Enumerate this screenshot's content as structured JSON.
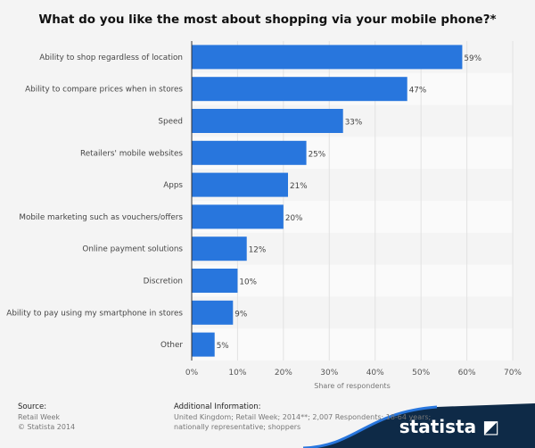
{
  "chart_data": {
    "type": "bar",
    "orientation": "horizontal",
    "title": "What do you like the most about shopping via your mobile phone?*",
    "categories": [
      "Ability to shop regardless of location",
      "Ability to compare prices when in stores",
      "Speed",
      "Retailers' mobile websites",
      "Apps",
      "Mobile marketing such as vouchers/offers",
      "Online payment solutions",
      "Discretion",
      "Ability to pay using my smartphone in stores",
      "Other"
    ],
    "values": [
      59,
      47,
      33,
      25,
      21,
      20,
      12,
      10,
      9,
      5
    ],
    "value_labels": [
      "59%",
      "47%",
      "33%",
      "25%",
      "21%",
      "20%",
      "12%",
      "10%",
      "9%",
      "5%"
    ],
    "xlabel": "Share of respondents",
    "xlim": [
      0,
      70
    ],
    "xticks": [
      "0%",
      "10%",
      "20%",
      "30%",
      "40%",
      "50%",
      "60%",
      "70%"
    ],
    "grid": true,
    "bar_color": "#2876dd"
  },
  "footer": {
    "source_label": "Source:",
    "source": "Retail Week",
    "copyright": "© Statista 2014",
    "info_label": "Additional Information:",
    "info_line1": "United Kingdom; Retail Week; 2014**; 2,007 Respondents; 18-64 years;",
    "info_line2": "nationally representative; shoppers",
    "logo": "statista"
  }
}
